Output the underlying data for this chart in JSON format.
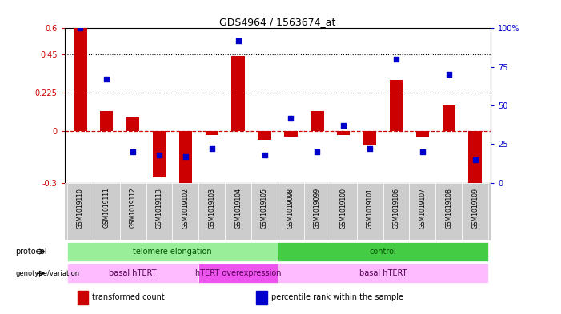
{
  "title": "GDS4964 / 1563674_at",
  "samples": [
    "GSM1019110",
    "GSM1019111",
    "GSM1019112",
    "GSM1019113",
    "GSM1019102",
    "GSM1019103",
    "GSM1019104",
    "GSM1019105",
    "GSM1019098",
    "GSM1019099",
    "GSM1019100",
    "GSM1019101",
    "GSM1019106",
    "GSM1019107",
    "GSM1019108",
    "GSM1019109"
  ],
  "transformed_count": [
    0.6,
    0.12,
    0.08,
    -0.27,
    -0.31,
    -0.02,
    0.44,
    -0.05,
    -0.03,
    0.12,
    -0.02,
    -0.08,
    0.3,
    -0.03,
    0.15,
    -0.31
  ],
  "percentile_rank": [
    100,
    67,
    20,
    18,
    17,
    22,
    92,
    18,
    42,
    20,
    37,
    22,
    80,
    20,
    70,
    15
  ],
  "ylim_left": [
    -0.3,
    0.6
  ],
  "ylim_right": [
    0,
    100
  ],
  "yticks_left": [
    -0.3,
    0.0,
    0.225,
    0.45,
    0.6
  ],
  "yticks_left_labels": [
    "-0.3",
    "0",
    "0.225",
    "0.45",
    "0.6"
  ],
  "yticks_right": [
    0,
    25,
    50,
    75,
    100
  ],
  "yticks_right_labels": [
    "0",
    "25",
    "50",
    "75",
    "100%"
  ],
  "hlines": [
    0.45,
    0.225
  ],
  "bar_color": "#cc0000",
  "dot_color": "#0000cc",
  "zero_line_color": "#cc0000",
  "chart_bg": "#ffffff",
  "ticklabel_bg": "#cccccc",
  "protocol_groups": [
    {
      "label": "telomere elongation",
      "start": 0,
      "end": 8,
      "color": "#99ee99"
    },
    {
      "label": "control",
      "start": 8,
      "end": 16,
      "color": "#44cc44"
    }
  ],
  "genotype_groups": [
    {
      "label": "basal hTERT",
      "start": 0,
      "end": 5,
      "color": "#ffbbff"
    },
    {
      "label": "hTERT overexpression",
      "start": 5,
      "end": 8,
      "color": "#ee55ee"
    },
    {
      "label": "basal hTERT",
      "start": 8,
      "end": 16,
      "color": "#ffbbff"
    }
  ],
  "bar_width": 0.5,
  "background_color": "#ffffff",
  "legend_items": [
    {
      "label": "transformed count",
      "color": "#cc0000"
    },
    {
      "label": "percentile rank within the sample",
      "color": "#0000cc"
    }
  ]
}
